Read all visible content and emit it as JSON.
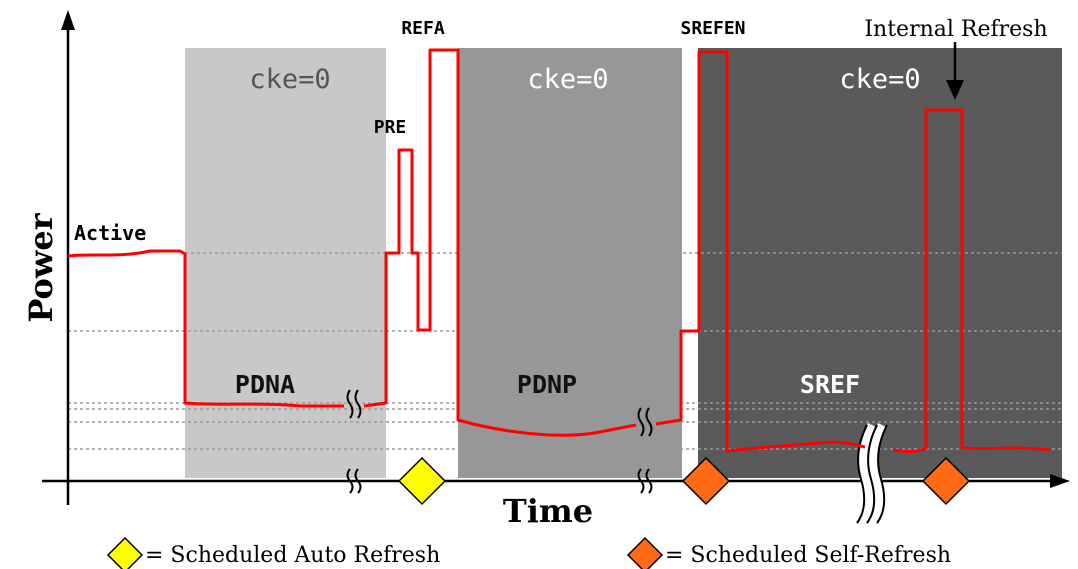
{
  "axes": {
    "y_title": "Power",
    "x_title": "Time"
  },
  "regions": [
    {
      "id": "pdna",
      "cke_label": "cke=0",
      "state_label": "PDNA",
      "fill": "#c8c8c8",
      "cke_color": "#555555",
      "state_color": "#111111"
    },
    {
      "id": "pdnp",
      "cke_label": "cke=0",
      "state_label": "PDNP",
      "fill": "#979797",
      "cke_color": "#ffffff",
      "state_color": "#111111"
    },
    {
      "id": "sref",
      "cke_label": "cke=0",
      "state_label": "SREF",
      "fill": "#5a5a5a",
      "cke_color": "#ffffff",
      "state_color": "#ffffff"
    }
  ],
  "labels": {
    "active": "Active",
    "pre": "PRE",
    "refa": "REFA",
    "srefen": "SREFEN",
    "internal_refresh": "Internal Refresh"
  },
  "legend": {
    "auto_refresh": {
      "text": "= Scheduled Auto Refresh",
      "color": "#ffff00"
    },
    "self_refresh": {
      "text": "= Scheduled Self-Refresh",
      "color": "#ff6a13"
    }
  },
  "colors": {
    "trace": "#ff0000",
    "axis": "#000000",
    "gridline": "#999999"
  }
}
